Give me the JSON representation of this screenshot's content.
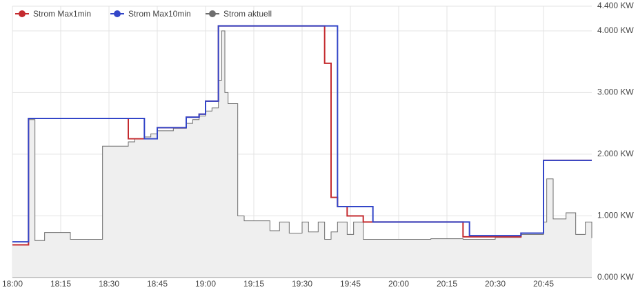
{
  "chart_data": {
    "type": "line",
    "step": true,
    "x": [
      "18:00",
      "18:05",
      "18:06",
      "18:07",
      "18:10",
      "18:18",
      "18:28",
      "18:36",
      "18:38",
      "18:41",
      "18:43",
      "18:45",
      "18:50",
      "18:54",
      "18:56",
      "18:58",
      "19:00",
      "19:02",
      "19:04",
      "19:05",
      "19:06",
      "19:07",
      "19:10",
      "19:12",
      "19:15",
      "19:20",
      "19:23",
      "19:26",
      "19:30",
      "19:32",
      "19:35",
      "19:37",
      "19:39",
      "19:41",
      "19:44",
      "19:46",
      "19:49",
      "19:52",
      "19:55",
      "20:00",
      "20:10",
      "20:20",
      "20:22",
      "20:30",
      "20:38",
      "20:45",
      "20:46",
      "20:48",
      "20:52",
      "20:55",
      "20:58",
      "21:00"
    ],
    "series": [
      {
        "name": "Strom Max1min",
        "color": "#c42b2f",
        "values": [
          530,
          2580,
          2580,
          2580,
          2580,
          2580,
          2580,
          2250,
          2250,
          2250,
          2250,
          2430,
          2430,
          2600,
          2600,
          2650,
          2860,
          2860,
          4080,
          4080,
          4080,
          4080,
          4080,
          4080,
          4080,
          4080,
          4080,
          4080,
          4080,
          4080,
          4080,
          3475,
          1300,
          1150,
          1000,
          1000,
          900,
          900,
          900,
          900,
          900,
          660,
          660,
          660,
          720,
          1900,
          1900,
          1900,
          1900,
          1900,
          1900,
          1900
        ]
      },
      {
        "name": "Strom Max10min",
        "color": "#3346c8",
        "values": [
          580,
          2580,
          2580,
          2580,
          2580,
          2580,
          2580,
          2580,
          2580,
          2250,
          2250,
          2430,
          2430,
          2600,
          2600,
          2650,
          2860,
          2860,
          4080,
          4080,
          4080,
          4080,
          4080,
          4080,
          4080,
          4080,
          4080,
          4080,
          4080,
          4080,
          4080,
          4080,
          4080,
          1150,
          1150,
          1150,
          1150,
          900,
          900,
          900,
          900,
          900,
          680,
          680,
          720,
          1900,
          1900,
          1900,
          1900,
          1900,
          1900,
          1900
        ]
      },
      {
        "name": "Strom aktuell",
        "color": "#6e6e6e",
        "area": true,
        "values": [
          530,
          2560,
          2560,
          600,
          730,
          620,
          2130,
          2200,
          2250,
          2280,
          2330,
          2380,
          2420,
          2500,
          2560,
          2620,
          2700,
          2750,
          3200,
          4000,
          3000,
          2820,
          1000,
          920,
          920,
          760,
          900,
          720,
          900,
          740,
          900,
          620,
          740,
          900,
          700,
          900,
          620,
          620,
          620,
          620,
          630,
          620,
          620,
          650,
          700,
          900,
          1600,
          950,
          1050,
          700,
          900,
          640
        ]
      }
    ],
    "xlim": [
      "18:00",
      "21:00"
    ],
    "xticks": [
      "18:00",
      "18:15",
      "18:30",
      "18:45",
      "19:00",
      "19:15",
      "19:30",
      "19:45",
      "20:00",
      "20:15",
      "20:30",
      "20:45"
    ],
    "ylim": [
      0,
      4400
    ],
    "yticks": [
      {
        "value": 0,
        "label": "0.000 KW"
      },
      {
        "value": 1000,
        "label": "1.000 KW"
      },
      {
        "value": 2000,
        "label": "2.000 KW"
      },
      {
        "value": 3000,
        "label": "3.000 KW"
      },
      {
        "value": 4000,
        "label": "4.000 KW"
      },
      {
        "value": 4400,
        "label": "4.400 KW"
      }
    ],
    "grid": true,
    "legend": "top-left"
  }
}
